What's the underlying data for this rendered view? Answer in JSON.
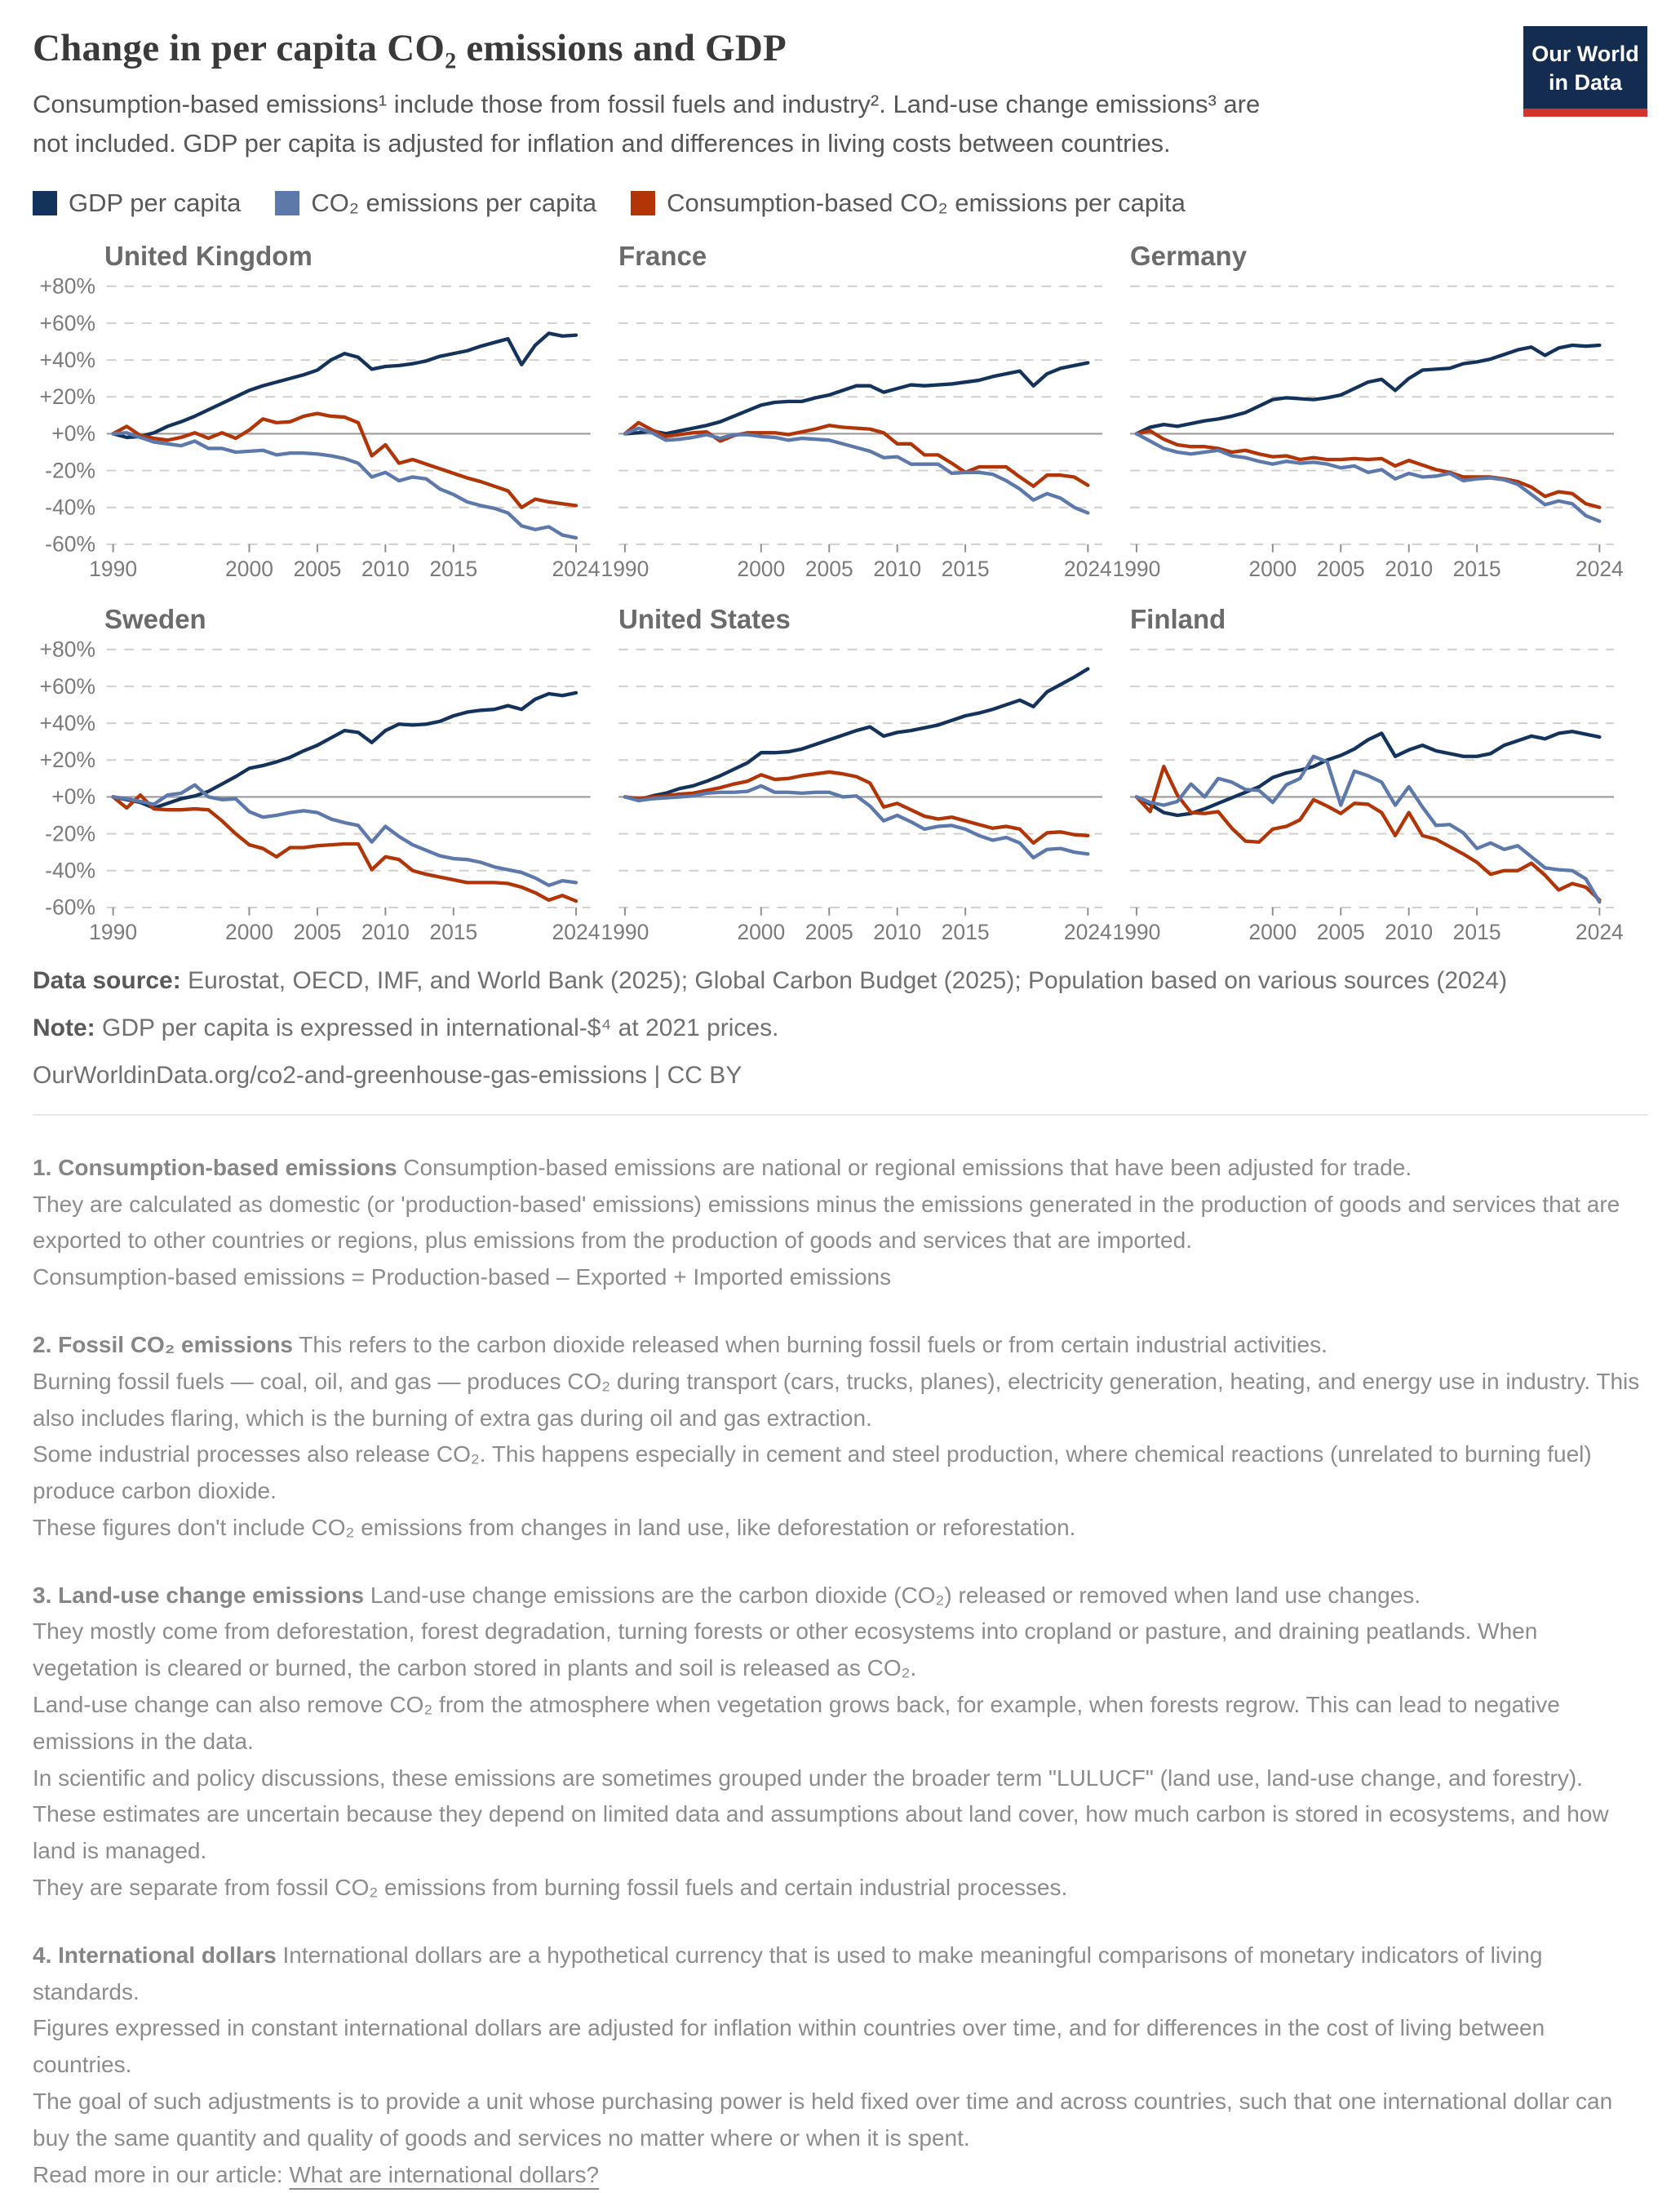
{
  "header": {
    "title": "Change in per capita CO₂ emissions and GDP",
    "subtitle": "Consumption-based emissions¹ include those from fossil fuels and industry². Land-use change emissions³ are not included. GDP per capita is adjusted for inflation and differences in living costs between countries.",
    "logo": {
      "line1": "Our World",
      "line2": "in Data",
      "bg_color": "#132c4f",
      "bar_color": "#d0342c"
    }
  },
  "legend": {
    "items": [
      {
        "key": "gdp",
        "label": "GDP per capita",
        "color": "#14335c"
      },
      {
        "key": "co2",
        "label": "CO₂ emissions per capita",
        "color": "#5d79ab"
      },
      {
        "key": "consumption",
        "label": "Consumption-based CO₂ emissions per capita",
        "color": "#b13507"
      }
    ]
  },
  "chart_data": {
    "type": "line",
    "title": "Change in per capita CO₂ emissions and GDP",
    "x": [
      1990,
      1991,
      1992,
      1993,
      1994,
      1995,
      1996,
      1997,
      1998,
      1999,
      2000,
      2001,
      2002,
      2003,
      2004,
      2005,
      2006,
      2007,
      2008,
      2009,
      2010,
      2011,
      2012,
      2013,
      2014,
      2015,
      2016,
      2017,
      2018,
      2019,
      2020,
      2021,
      2022,
      2023,
      2024
    ],
    "x_ticks": [
      1990,
      2000,
      2005,
      2010,
      2015,
      2024
    ],
    "ylim": [
      -60,
      80
    ],
    "y_ticks": [
      {
        "value": 80,
        "label": "+80%"
      },
      {
        "value": 60,
        "label": "+60%"
      },
      {
        "value": 40,
        "label": "+40%"
      },
      {
        "value": 20,
        "label": "+20%"
      },
      {
        "value": 0,
        "label": "+0%"
      },
      {
        "value": -20,
        "label": "-20%"
      },
      {
        "value": -40,
        "label": "-40%"
      },
      {
        "value": -60,
        "label": "-60%"
      }
    ],
    "grid": "horizontal dashed, solid zero line, y labels on leftmost charts only",
    "legend_position": "top",
    "series": [
      {
        "key": "gdp",
        "name": "GDP per capita",
        "color": "#14335c"
      },
      {
        "key": "co2",
        "name": "CO₂ emissions per capita",
        "color": "#5d79ab"
      },
      {
        "key": "consumption",
        "name": "Consumption-based CO₂ emissions per capita",
        "color": "#b13507"
      }
    ],
    "draw_order": [
      "gdp",
      "consumption",
      "co2"
    ],
    "panels": [
      {
        "country": "United Kingdom",
        "values": {
          "gdp": [
            0,
            -2,
            -1.5,
            0.5,
            4,
            6.5,
            9.5,
            13,
            16.5,
            20,
            23.5,
            26,
            28,
            30,
            32,
            34.5,
            40,
            43.5,
            41.5,
            35,
            36.5,
            37,
            38,
            39.5,
            42,
            43.5,
            45,
            47.5,
            49.5,
            51.5,
            37.5,
            48,
            54.5,
            53,
            53.5
          ],
          "co2": [
            0,
            0.5,
            -2,
            -4.5,
            -5.5,
            -6.5,
            -4,
            -8,
            -8,
            -10,
            -9.5,
            -9,
            -11.5,
            -10.5,
            -10.5,
            -11,
            -12,
            -13.5,
            -16,
            -23.5,
            -21,
            -25.5,
            -23.5,
            -24.5,
            -30,
            -33,
            -37,
            -39,
            -40.5,
            -43,
            -50,
            -52,
            -50.5,
            -55,
            -56.5
          ],
          "consumption": [
            0,
            4,
            -1,
            -2.5,
            -3.5,
            -2,
            0.5,
            -2.5,
            0.5,
            -2.5,
            2,
            8,
            6,
            6.5,
            9.5,
            11,
            9.5,
            9,
            6,
            -12,
            -6,
            -16,
            -14,
            -16.5,
            -19,
            -21.5,
            -24,
            -26,
            -28.5,
            -31,
            -40,
            -35.5,
            -37,
            -38,
            -39
          ]
        }
      },
      {
        "country": "France",
        "values": {
          "gdp": [
            0,
            0.5,
            1.5,
            0,
            1.5,
            3,
            4.5,
            6.5,
            9.5,
            12.5,
            15.5,
            17,
            17.5,
            17.5,
            19.5,
            21,
            23.5,
            26,
            26,
            22.5,
            24.5,
            26.5,
            26,
            26.5,
            27,
            28,
            29,
            31,
            32.5,
            34,
            26,
            32.5,
            35.5,
            37,
            38.5
          ],
          "co2": [
            0,
            3,
            0.5,
            -3.5,
            -3,
            -2,
            -0.5,
            -2.5,
            -0.5,
            -0.5,
            -1.5,
            -2,
            -3.5,
            -2.5,
            -3,
            -3.5,
            -5.5,
            -7.5,
            -9.5,
            -13,
            -12.5,
            -16.5,
            -16.5,
            -16.5,
            -21.5,
            -21,
            -21,
            -22,
            -25.5,
            -30,
            -36,
            -32.5,
            -35,
            -40,
            -43
          ],
          "consumption": [
            0,
            6,
            2,
            -1.5,
            -0.5,
            0.5,
            1,
            -4,
            -1,
            0.5,
            0.5,
            0.5,
            -0.5,
            1,
            2.5,
            4.5,
            3.5,
            3,
            2.5,
            0.5,
            -5.5,
            -5.5,
            -11.5,
            -11.5,
            -16,
            -21,
            -18,
            -18,
            -18,
            -23.5,
            -28.5,
            -22.5,
            -22.5,
            -23.5,
            -28
          ]
        }
      },
      {
        "country": "Germany",
        "values": {
          "gdp": [
            0,
            3.5,
            5,
            4,
            5.5,
            7,
            8,
            9.5,
            11.5,
            15,
            18.5,
            19.5,
            19,
            18.5,
            19.5,
            21,
            24.5,
            28,
            29.5,
            23.5,
            30,
            34.5,
            35,
            35.5,
            38,
            39,
            40.5,
            43,
            45.5,
            47,
            42.5,
            46.5,
            48,
            47.5,
            48
          ],
          "co2": [
            0,
            -4,
            -8,
            -10,
            -11,
            -10,
            -9,
            -12,
            -13,
            -15,
            -16.5,
            -15,
            -16,
            -15.5,
            -16.5,
            -18.5,
            -17.5,
            -21,
            -19.5,
            -24.5,
            -21.5,
            -23.5,
            -23,
            -21.5,
            -25.5,
            -24.5,
            -24,
            -25,
            -27.5,
            -33,
            -38.5,
            -36.5,
            -38,
            -44.5,
            -47.5
          ],
          "consumption": [
            0,
            1.5,
            -3,
            -6,
            -7,
            -7,
            -8,
            -10,
            -9,
            -11,
            -12.5,
            -12,
            -14,
            -13,
            -14,
            -14,
            -13.5,
            -14,
            -13.5,
            -17.5,
            -14.5,
            -17,
            -19.5,
            -21,
            -23.5,
            -23.5,
            -23.5,
            -24.5,
            -26,
            -29,
            -34,
            -31.5,
            -32.5,
            -38,
            -40
          ]
        }
      },
      {
        "country": "Sweden",
        "values": {
          "gdp": [
            0,
            -1.5,
            -3,
            -6,
            -3.5,
            -1,
            0.5,
            3,
            7,
            11,
            15.5,
            17,
            19,
            21.5,
            25,
            28,
            32,
            36,
            35,
            29.5,
            36,
            39.5,
            39,
            39.5,
            41,
            44,
            46,
            47,
            47.5,
            49.5,
            47.5,
            53,
            56,
            55,
            56.5
          ],
          "co2": [
            0,
            -1,
            -2.5,
            -4,
            1,
            2,
            6.5,
            0,
            -1.5,
            -1,
            -8,
            -11,
            -10,
            -8.5,
            -7.5,
            -8.5,
            -12,
            -14,
            -15.5,
            -24.5,
            -16,
            -21.5,
            -26,
            -29,
            -32,
            -33.5,
            -34,
            -35.5,
            -38,
            -39.5,
            -41,
            -44,
            -48,
            -45.5,
            -46.5
          ],
          "consumption": [
            0,
            -6,
            1,
            -6.5,
            -7,
            -7,
            -6.5,
            -7,
            -13,
            -20,
            -26,
            -28,
            -32.5,
            -27.5,
            -27.5,
            -26.5,
            -26,
            -25.5,
            -25.5,
            -39.5,
            -32.5,
            -34,
            -40,
            -42,
            -43.5,
            -45,
            -46.5,
            -46.5,
            -46.5,
            -47,
            -49,
            -52,
            -56,
            -53.5,
            -56.5
          ]
        }
      },
      {
        "country": "United States",
        "values": {
          "gdp": [
            0,
            -1.5,
            0.5,
            2,
            4.5,
            6,
            8.5,
            11.5,
            15,
            18.5,
            24,
            24,
            24.5,
            26,
            28.5,
            31,
            33.5,
            36,
            38,
            33,
            35,
            36,
            37.5,
            39,
            41.5,
            44,
            45.5,
            47.5,
            50,
            52.5,
            49,
            57,
            61,
            65,
            69.5
          ],
          "co2": [
            0,
            -2,
            -1,
            -0.5,
            0,
            0.5,
            2,
            2.5,
            2.5,
            3,
            6,
            2.5,
            2.5,
            2,
            2.5,
            2.5,
            0,
            0.5,
            -5,
            -13,
            -10,
            -13.5,
            -17.5,
            -16,
            -15.5,
            -17.5,
            -21,
            -23.5,
            -22,
            -25,
            -33,
            -28.5,
            -28,
            -30,
            -31
          ],
          "consumption": [
            0,
            -1,
            0,
            0.5,
            1.5,
            2,
            3.5,
            5,
            7,
            8.5,
            12,
            9.5,
            10,
            11.5,
            12.5,
            13.5,
            12.5,
            11,
            7.5,
            -5.5,
            -3.5,
            -7,
            -10.5,
            -12,
            -11,
            -13,
            -15,
            -17,
            -16,
            -17.5,
            -25,
            -19.5,
            -19,
            -20.5,
            -21
          ]
        }
      },
      {
        "country": "Finland",
        "values": {
          "gdp": [
            0,
            -4,
            -8.5,
            -10,
            -9,
            -6.5,
            -3.5,
            -0.5,
            2.5,
            5.5,
            10.5,
            13,
            14.5,
            16.5,
            20,
            22.5,
            26,
            31,
            34.5,
            22,
            25.5,
            28,
            25,
            23.5,
            22,
            22,
            23.5,
            28,
            30.5,
            33,
            31.5,
            34.5,
            35.5,
            34,
            32.5
          ],
          "co2": [
            0,
            -3,
            -4.5,
            -2.5,
            7,
            0,
            10,
            8,
            4,
            3.5,
            -3,
            6.5,
            10,
            22,
            19,
            -4.5,
            14,
            11.5,
            8,
            -4.5,
            5.5,
            -5.5,
            -15.5,
            -15,
            -19.5,
            -28,
            -25,
            -28.5,
            -26.5,
            -32.5,
            -38.5,
            -39.5,
            -40,
            -44.5,
            -57
          ],
          "consumption": [
            0,
            -8,
            16.5,
            1,
            -8.5,
            -9,
            -8,
            -17,
            -24,
            -24.5,
            -17.5,
            -16,
            -12.5,
            -1.5,
            -5,
            -9,
            -3.5,
            -4,
            -8.5,
            -21,
            -8.5,
            -21,
            -23,
            -27,
            -31,
            -35.5,
            -42,
            -40,
            -40,
            -36,
            -42.5,
            -50.5,
            -47,
            -49,
            -56
          ]
        }
      }
    ],
    "style": {
      "gridline_color": "#d2cec9",
      "zero_line_color": "#9b9b9b",
      "tick_text_color": "#7b7b7b",
      "tick_mark_color": "#8f8f8f"
    }
  },
  "footer": {
    "source_label": "Data source:",
    "source_text": "Eurostat, OECD, IMF, and World Bank (2025); Global Carbon Budget (2025); Population based on various sources (2024)",
    "note_label": "Note:",
    "note_text": "GDP per capita is expressed in international-$⁴ at 2021 prices.",
    "url": "OurWorldinData.org/co2-and-greenhouse-gas-emissions",
    "separator": "|",
    "license": "CC BY"
  },
  "footnotes": [
    {
      "title": "1. Consumption-based emissions",
      "lead": "Consumption-based emissions are national or regional emissions that have been adjusted for trade.",
      "paragraphs": [
        "They are calculated as domestic (or 'production-based' emissions) emissions minus the emissions generated in the production of goods and services that are exported to other countries or regions, plus emissions from the production of goods and services that are imported.",
        "Consumption-based emissions = Production-based – Exported + Imported emissions"
      ]
    },
    {
      "title": "2. Fossil CO₂ emissions",
      "lead": "This refers to the carbon dioxide released when burning fossil fuels or from certain industrial activities.",
      "paragraphs": [
        "Burning fossil fuels — coal, oil, and gas — produces CO₂ during transport (cars, trucks, planes), electricity generation, heating, and energy use in industry. This also includes flaring, which is the burning of extra gas during oil and gas extraction.",
        "Some industrial processes also release CO₂. This happens especially in cement and steel production, where chemical reactions (unrelated to burning fuel) produce carbon dioxide.",
        "These figures don't include CO₂ emissions from changes in land use, like deforestation or reforestation."
      ]
    },
    {
      "title": "3. Land-use change emissions",
      "lead": "Land-use change emissions are the carbon dioxide (CO₂) released or removed when land use changes.",
      "paragraphs": [
        "They mostly come from deforestation, forest degradation, turning forests or other ecosystems into cropland or pasture, and draining peatlands. When vegetation is cleared or burned, the carbon stored in plants and soil is released as CO₂.",
        "Land-use change can also remove CO₂ from the atmosphere when vegetation grows back, for example, when forests regrow. This can lead to negative emissions in the data.",
        "In scientific and policy discussions, these emissions are sometimes grouped under the broader term \"LULUCF\" (land use, land-use change, and forestry).",
        "These estimates are uncertain because they depend on limited data and assumptions about land cover, how much carbon is stored in ecosystems, and how land is managed.",
        "They are separate from fossil CO₂ emissions from burning fossil fuels and certain industrial processes."
      ]
    },
    {
      "title": "4. International dollars",
      "lead": "International dollars are a hypothetical currency that is used to make meaningful comparisons of monetary indicators of living standards.",
      "paragraphs": [
        "Figures expressed in constant international dollars are adjusted for inflation within countries over time, and for differences in the cost of living between countries.",
        "The goal of such adjustments is to provide a unit whose purchasing power is held fixed over time and across countries, such that one international dollar can buy the same quantity and quality of goods and services no matter where or when it is spent."
      ],
      "read_more_prefix": "Read more in our article: ",
      "read_more_link": "What are international dollars?"
    }
  ]
}
